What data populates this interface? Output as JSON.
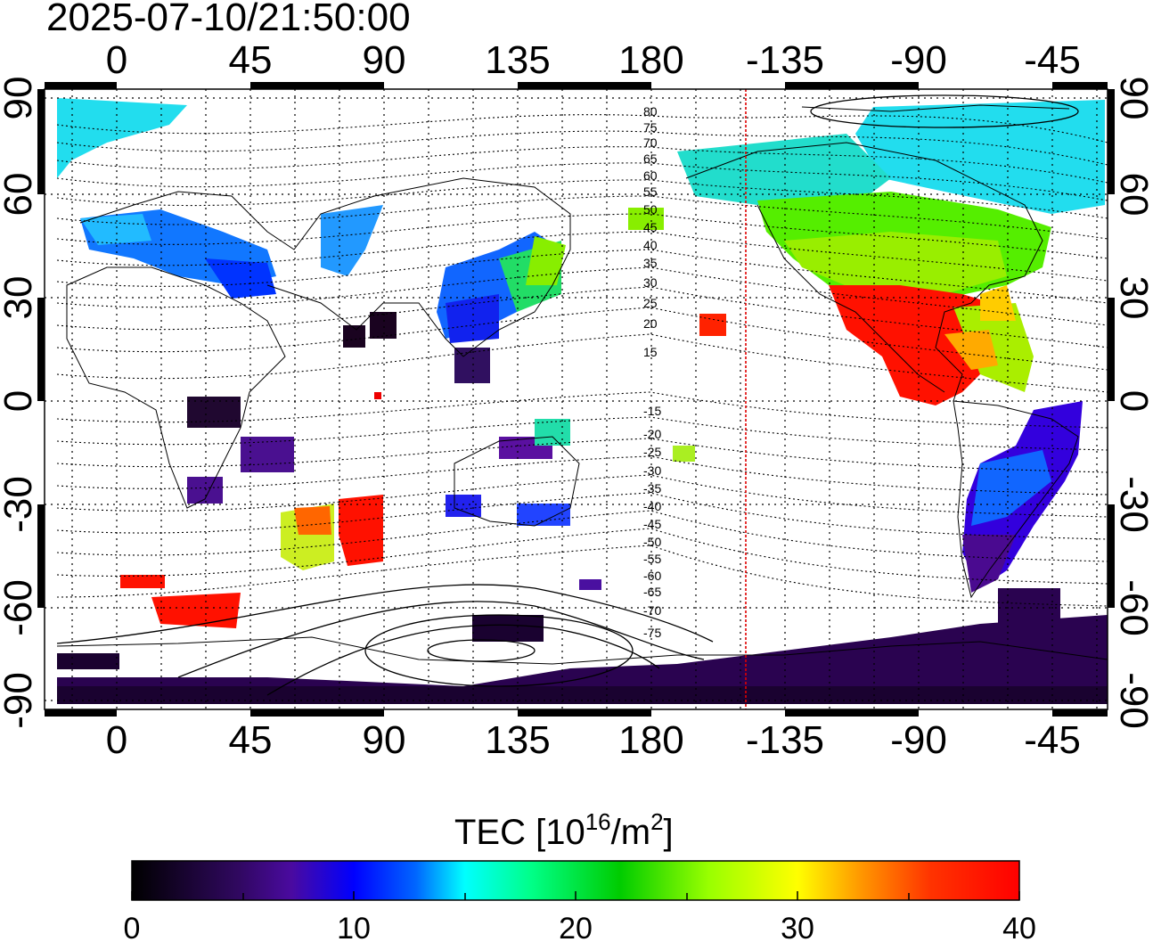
{
  "title": "2025-07-10/21:50:00",
  "map": {
    "top_lon_labels": [
      "0",
      "45",
      "90",
      "135",
      "180",
      "-135",
      "-90",
      "-45"
    ],
    "bottom_lon_labels": [
      "0",
      "45",
      "90",
      "135",
      "180",
      "-135",
      "-90",
      "-45"
    ],
    "left_lat_labels": [
      "90",
      "60",
      "30",
      "0",
      "-30",
      "-60",
      "-90"
    ],
    "right_lat_labels": [
      "90",
      "60",
      "30",
      "0",
      "-30",
      "-60",
      "-90"
    ],
    "contour_labels": [
      "80",
      "75",
      "70",
      "65",
      "60",
      "55",
      "50",
      "45",
      "40",
      "35",
      "30",
      "25",
      "20",
      "15",
      "-15",
      "-20",
      "-25",
      "-30",
      "-35",
      "-40",
      "-45",
      "-50",
      "-55",
      "-60",
      "-65",
      "-70",
      "-75"
    ],
    "terminator_color": "#e00000",
    "grid": "dotted"
  },
  "colorbar": {
    "title_main": "TEC  [10",
    "title_sup1": "16",
    "title_mid": "/m",
    "title_sup2": "2",
    "title_end": "]",
    "tick_labels": [
      "0",
      "10",
      "20",
      "30",
      "40"
    ],
    "min": 0,
    "max": 40,
    "colors": [
      "#000000",
      "#3a0a6a",
      "#4a0aa0",
      "#0000ff",
      "#00aaff",
      "#00ffff",
      "#00ff66",
      "#00cc00",
      "#aaff00",
      "#ffff00",
      "#ff9900",
      "#ff3300",
      "#ff0000"
    ]
  }
}
